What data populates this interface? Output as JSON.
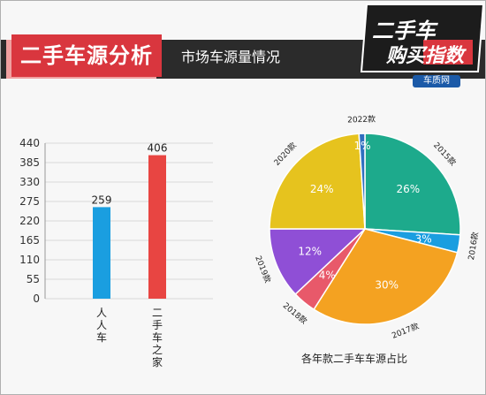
{
  "header": {
    "title": "二手车源分析",
    "subtitle": "市场车源量情况",
    "logo_line1": "二手车",
    "logo_line2": "购买指数",
    "logo_site": "车质网"
  },
  "chart_data": [
    {
      "type": "bar",
      "categories": [
        "人人车",
        "二手车之家"
      ],
      "values": [
        259,
        406
      ],
      "ylim": [
        0,
        440
      ],
      "yticks": [
        0,
        55,
        110,
        165,
        220,
        275,
        330,
        385,
        440
      ],
      "colors": [
        "#1a9ee0",
        "#e84542"
      ],
      "grid": true
    },
    {
      "type": "pie",
      "title": "各年款二手车车源占比",
      "slices": [
        {
          "label": "2015款",
          "percent": 26,
          "pct_label": "26%",
          "color": "#1daa8c"
        },
        {
          "label": "2016款",
          "percent": 3,
          "pct_label": "3%",
          "color": "#1a9ee0"
        },
        {
          "label": "2017款",
          "percent": 30,
          "pct_label": "30%",
          "color": "#f4a221"
        },
        {
          "label": "2018款",
          "percent": 4,
          "pct_label": "4%",
          "color": "#e8596a"
        },
        {
          "label": "2019款",
          "percent": 12,
          "pct_label": "12%",
          "color": "#8f4fd6"
        },
        {
          "label": "2020款",
          "percent": 24,
          "pct_label": "24%",
          "color": "#e6c31e"
        },
        {
          "label": "2022款",
          "percent": 1,
          "pct_label": "1%",
          "color": "#2f6fbf"
        }
      ]
    }
  ]
}
